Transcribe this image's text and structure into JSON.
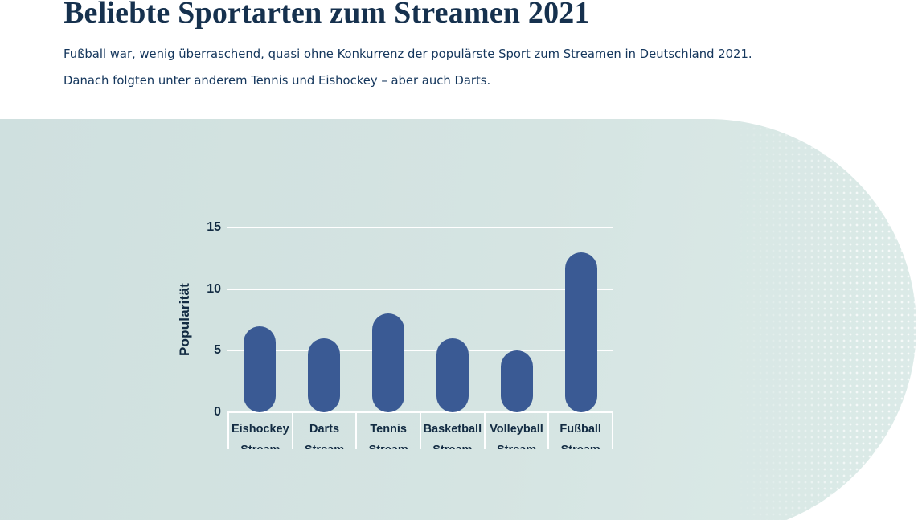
{
  "header": {
    "title": "Beliebte Sportarten zum Streamen 2021",
    "subtitle_lines": [
      "Fußball war, wenig überraschend, quasi ohne Konkurrenz der populärste Sport zum Streamen in Deutschland 2021.",
      "Danach folgten unter anderem Tennis und Eishockey – aber auch Darts."
    ]
  },
  "chart_data": {
    "type": "bar",
    "title": "",
    "xlabel": "",
    "ylabel": "Popularität",
    "categories": [
      {
        "line1": "Eishockey",
        "line2": "Stream"
      },
      {
        "line1": "Darts",
        "line2": "Stream"
      },
      {
        "line1": "Tennis",
        "line2": "Stream"
      },
      {
        "line1": "Basketball",
        "line2": "Stream"
      },
      {
        "line1": "Volleyball",
        "line2": "Stream"
      },
      {
        "line1": "Fußball",
        "line2": "Stream"
      }
    ],
    "values": [
      7,
      6,
      8,
      6,
      5,
      13
    ],
    "yticks": [
      0,
      5,
      10,
      15
    ],
    "ylim": [
      0,
      15
    ],
    "grid": "horizontal-white-lines",
    "legend": "none",
    "bar_shape": "rounded-pill"
  },
  "colors": {
    "page_background": "#FFFFFF",
    "panel_background": "#D5E4E2",
    "bar": "#3A5A94",
    "gridline": "#FFFFFF",
    "title_text": "#16314E",
    "subtitle_text": "#14365C",
    "chart_text": "#122B42"
  }
}
